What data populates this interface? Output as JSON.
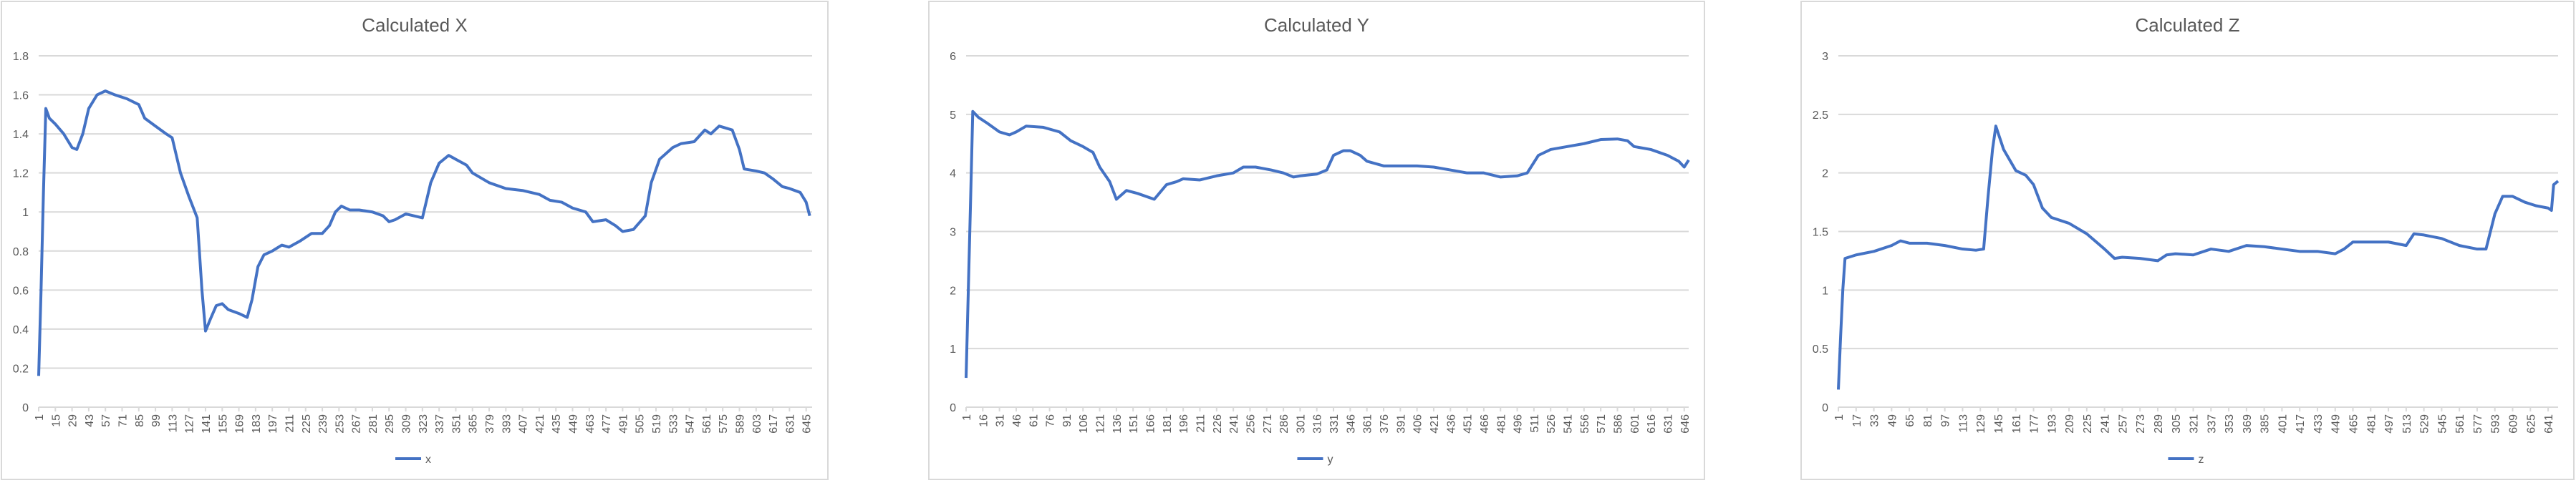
{
  "chart_data": [
    {
      "type": "line",
      "title": "Calculated X",
      "x": [
        1,
        3,
        5,
        7,
        10,
        15,
        22,
        29,
        33,
        38,
        43,
        50,
        57,
        65,
        75,
        85,
        90,
        99,
        108,
        113,
        120,
        127,
        134,
        138,
        141,
        145,
        150,
        155,
        160,
        169,
        176,
        180,
        185,
        190,
        197,
        205,
        211,
        220,
        230,
        239,
        245,
        250,
        255,
        262,
        270,
        281,
        290,
        295,
        300,
        309,
        316,
        323,
        330,
        337,
        345,
        351,
        360,
        365,
        379,
        393,
        407,
        421,
        430,
        440,
        449,
        460,
        466,
        477,
        485,
        491,
        500,
        510,
        515,
        522,
        533,
        540,
        551,
        560,
        565,
        572,
        583,
        589,
        593,
        603,
        610,
        617,
        625,
        631,
        640,
        645,
        648
      ],
      "series": [
        {
          "name": "x",
          "color": "#4472c4",
          "values": [
            0.16,
            0.6,
            1.1,
            1.53,
            1.48,
            1.45,
            1.4,
            1.33,
            1.32,
            1.4,
            1.53,
            1.6,
            1.62,
            1.6,
            1.58,
            1.55,
            1.48,
            1.44,
            1.4,
            1.38,
            1.2,
            1.08,
            0.97,
            0.6,
            0.39,
            0.45,
            0.52,
            0.53,
            0.5,
            0.48,
            0.46,
            0.55,
            0.72,
            0.78,
            0.8,
            0.83,
            0.82,
            0.85,
            0.89,
            0.89,
            0.93,
            1.0,
            1.03,
            1.01,
            1.01,
            1.0,
            0.98,
            0.95,
            0.96,
            0.99,
            0.98,
            0.97,
            1.15,
            1.25,
            1.29,
            1.27,
            1.24,
            1.2,
            1.15,
            1.12,
            1.11,
            1.09,
            1.06,
            1.05,
            1.02,
            1.0,
            0.95,
            0.96,
            0.93,
            0.9,
            0.91,
            0.98,
            1.15,
            1.27,
            1.33,
            1.35,
            1.36,
            1.42,
            1.4,
            1.44,
            1.42,
            1.32,
            1.22,
            1.21,
            1.2,
            1.17,
            1.13,
            1.12,
            1.1,
            1.05,
            0.98
          ]
        }
      ],
      "xlim": [
        1,
        650
      ],
      "xticks": [
        1,
        15,
        29,
        43,
        57,
        71,
        85,
        99,
        113,
        127,
        141,
        155,
        169,
        183,
        197,
        211,
        225,
        239,
        253,
        267,
        281,
        295,
        309,
        323,
        337,
        351,
        365,
        379,
        393,
        407,
        421,
        435,
        449,
        463,
        477,
        491,
        505,
        519,
        533,
        547,
        561,
        575,
        589,
        603,
        617,
        631,
        645
      ],
      "ylim": [
        0,
        1.8
      ],
      "yticks": [
        0,
        0.2,
        0.4,
        0.6,
        0.8,
        1,
        1.2,
        1.4,
        1.6,
        1.8
      ],
      "grid": true,
      "legend": "bottom"
    },
    {
      "type": "line",
      "title": "Calculated Y",
      "x": [
        1,
        3,
        5,
        7,
        12,
        20,
        31,
        40,
        46,
        55,
        70,
        85,
        95,
        106,
        115,
        121,
        130,
        136,
        145,
        155,
        170,
        181,
        190,
        196,
        211,
        226,
        241,
        250,
        261,
        275,
        286,
        295,
        301,
        316,
        325,
        331,
        340,
        346,
        355,
        361,
        376,
        391,
        406,
        421,
        436,
        451,
        466,
        481,
        496,
        505,
        515,
        526,
        541,
        556,
        571,
        586,
        595,
        601,
        616,
        631,
        641,
        646,
        650
      ],
      "series": [
        {
          "name": "y",
          "color": "#4472c4",
          "values": [
            0.5,
            2,
            3.5,
            5.05,
            4.95,
            4.85,
            4.7,
            4.65,
            4.7,
            4.8,
            4.78,
            4.7,
            4.55,
            4.45,
            4.35,
            4.1,
            3.85,
            3.55,
            3.7,
            3.65,
            3.55,
            3.8,
            3.85,
            3.9,
            3.88,
            3.95,
            4.0,
            4.1,
            4.1,
            4.05,
            4.0,
            3.93,
            3.95,
            3.98,
            4.05,
            4.3,
            4.38,
            4.38,
            4.3,
            4.2,
            4.12,
            4.12,
            4.12,
            4.1,
            4.05,
            4.0,
            4.0,
            3.93,
            3.95,
            4.0,
            4.3,
            4.4,
            4.45,
            4.5,
            4.57,
            4.58,
            4.55,
            4.45,
            4.4,
            4.3,
            4.2,
            4.1,
            4.22
          ]
        }
      ],
      "xlim": [
        1,
        650
      ],
      "xticks": [
        1,
        16,
        31,
        46,
        61,
        76,
        91,
        106,
        121,
        136,
        151,
        166,
        181,
        196,
        211,
        226,
        241,
        256,
        271,
        286,
        301,
        316,
        331,
        346,
        361,
        376,
        391,
        406,
        421,
        436,
        451,
        466,
        481,
        496,
        511,
        526,
        541,
        556,
        571,
        586,
        601,
        616,
        631,
        646
      ],
      "ylim": [
        0,
        6
      ],
      "yticks": [
        0,
        1,
        2,
        3,
        4,
        5,
        6
      ],
      "grid": true,
      "legend": "bottom"
    },
    {
      "type": "line",
      "title": "Calculated Z",
      "x": [
        1,
        3,
        5,
        7,
        17,
        33,
        49,
        57,
        65,
        81,
        97,
        113,
        125,
        132,
        136,
        140,
        143,
        150,
        161,
        170,
        177,
        185,
        193,
        209,
        225,
        241,
        250,
        257,
        273,
        289,
        297,
        305,
        321,
        337,
        353,
        369,
        385,
        401,
        417,
        433,
        449,
        457,
        465,
        481,
        497,
        513,
        520,
        529,
        545,
        561,
        577,
        585,
        593,
        600,
        609,
        620,
        630,
        641,
        644,
        646,
        650
      ],
      "series": [
        {
          "name": "z",
          "color": "#4472c4",
          "values": [
            0.15,
            0.6,
            1.0,
            1.27,
            1.3,
            1.33,
            1.38,
            1.42,
            1.4,
            1.4,
            1.38,
            1.35,
            1.34,
            1.35,
            1.8,
            2.2,
            2.4,
            2.2,
            2.02,
            1.98,
            1.9,
            1.7,
            1.62,
            1.57,
            1.48,
            1.35,
            1.27,
            1.28,
            1.27,
            1.25,
            1.3,
            1.31,
            1.3,
            1.35,
            1.33,
            1.38,
            1.37,
            1.35,
            1.33,
            1.33,
            1.31,
            1.35,
            1.41,
            1.41,
            1.41,
            1.38,
            1.48,
            1.47,
            1.44,
            1.38,
            1.35,
            1.35,
            1.65,
            1.8,
            1.8,
            1.75,
            1.72,
            1.7,
            1.68,
            1.9,
            1.93
          ]
        }
      ],
      "xlim": [
        1,
        650
      ],
      "xticks": [
        1,
        17,
        33,
        49,
        65,
        81,
        97,
        113,
        129,
        145,
        161,
        177,
        193,
        209,
        225,
        241,
        257,
        273,
        289,
        305,
        321,
        337,
        353,
        369,
        385,
        401,
        417,
        433,
        449,
        465,
        481,
        497,
        513,
        529,
        545,
        561,
        577,
        593,
        609,
        625,
        641
      ],
      "ylim": [
        0,
        3
      ],
      "yticks": [
        0,
        0.5,
        1,
        1.5,
        2,
        2.5,
        3
      ],
      "grid": true,
      "legend": "bottom"
    }
  ]
}
